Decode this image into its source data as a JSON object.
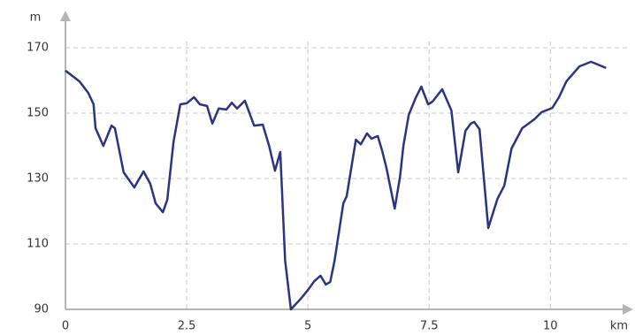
{
  "chart_data": {
    "type": "line",
    "x_label": "km",
    "y_label": "m",
    "x": [
      0,
      0.29,
      0.47,
      0.58,
      0.62,
      0.78,
      0.95,
      1.02,
      1.2,
      1.42,
      1.61,
      1.75,
      1.86,
      2.01,
      2.1,
      2.23,
      2.37,
      2.5,
      2.65,
      2.77,
      2.92,
      3.03,
      3.16,
      3.32,
      3.43,
      3.54,
      3.7,
      3.89,
      4.07,
      4.2,
      4.32,
      4.43,
      4.53,
      4.65,
      4.85,
      5,
      5.13,
      5.26,
      5.37,
      5.46,
      5.55,
      5.73,
      5.8,
      5.99,
      6.09,
      6.22,
      6.31,
      6.44,
      6.53,
      6.62,
      6.79,
      6.9,
      6.97,
      7.08,
      7.23,
      7.34,
      7.48,
      7.57,
      7.77,
      7.96,
      8.1,
      8.25,
      8.36,
      8.43,
      8.54,
      8.72,
      8.91,
      9.05,
      9.2,
      9.42,
      9.67,
      9.82,
      10.04,
      10.18,
      10.33,
      10.6,
      10.84,
      11.15
    ],
    "y": [
      163,
      159.7,
      156.2,
      152.7,
      145.4,
      140,
      146.2,
      145.4,
      131.9,
      127.3,
      132.2,
      128.4,
      122.4,
      119.7,
      123.5,
      141.4,
      152.7,
      153,
      154.9,
      152.7,
      152.2,
      146.8,
      151.4,
      151.1,
      153.2,
      151.4,
      153.8,
      146.2,
      146.5,
      140,
      132.4,
      138.1,
      104.9,
      90,
      93.2,
      95.9,
      98.6,
      100.3,
      97.6,
      98.4,
      104.9,
      122.4,
      124.6,
      141.9,
      140.5,
      143.8,
      142.2,
      143,
      138.6,
      133.2,
      120.8,
      130.5,
      140,
      149.5,
      154.9,
      158.1,
      152.7,
      153.5,
      157.3,
      150.8,
      131.9,
      144.6,
      146.8,
      147.3,
      145.1,
      114.9,
      123.8,
      127.8,
      139.2,
      145.4,
      148.1,
      150.3,
      151.6,
      154.9,
      159.7,
      164.3,
      165.7,
      163.8
    ],
    "color": "#2b3480",
    "xlim": [
      0,
      11.6
    ],
    "ylim": [
      90,
      180
    ],
    "xticks": [
      0,
      2.5,
      5,
      7.5,
      10
    ],
    "yticks": [
      90,
      110,
      130,
      150,
      170
    ],
    "grid": true
  }
}
